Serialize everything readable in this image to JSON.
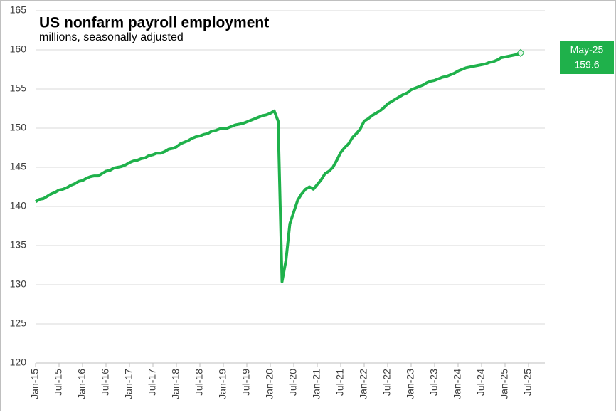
{
  "chart_data": {
    "type": "line",
    "title": "US nonfarm payroll employment",
    "subtitle": "millions, seasonally adjusted",
    "categories": [
      "Jan-15",
      null,
      null,
      null,
      null,
      null,
      "Jul-15",
      null,
      null,
      null,
      null,
      null,
      "Jan-16",
      null,
      null,
      null,
      null,
      null,
      "Jul-16",
      null,
      null,
      null,
      null,
      null,
      "Jan-17",
      null,
      null,
      null,
      null,
      null,
      "Jul-17",
      null,
      null,
      null,
      null,
      null,
      "Jan-18",
      null,
      null,
      null,
      null,
      null,
      "Jul-18",
      null,
      null,
      null,
      null,
      null,
      "Jan-19",
      null,
      null,
      null,
      null,
      null,
      "Jul-19",
      null,
      null,
      null,
      null,
      null,
      "Jan-20",
      null,
      null,
      null,
      null,
      null,
      "Jul-20",
      null,
      null,
      null,
      null,
      null,
      "Jan-21",
      null,
      null,
      null,
      null,
      null,
      "Jul-21",
      null,
      null,
      null,
      null,
      null,
      "Jan-22",
      null,
      null,
      null,
      null,
      null,
      "Jul-22",
      null,
      null,
      null,
      null,
      null,
      "Jan-23",
      null,
      null,
      null,
      null,
      null,
      "Jul-23",
      null,
      null,
      null,
      null,
      null,
      "Jan-24",
      null,
      null,
      null,
      null,
      null,
      "Jul-24",
      null,
      null,
      null,
      null,
      null,
      "Jan-25",
      null,
      null,
      null,
      null,
      null,
      "Jul-25"
    ],
    "series": [
      {
        "name": "US nonfarm payroll employment",
        "color": "#1fb14b",
        "values": [
          140.6,
          140.9,
          141.0,
          141.3,
          141.6,
          141.8,
          142.1,
          142.2,
          142.4,
          142.7,
          142.9,
          143.2,
          143.3,
          143.6,
          143.8,
          143.9,
          143.9,
          144.2,
          144.5,
          144.6,
          144.9,
          145.0,
          145.1,
          145.3,
          145.6,
          145.8,
          145.9,
          146.1,
          146.2,
          146.5,
          146.6,
          146.8,
          146.8,
          147.0,
          147.3,
          147.4,
          147.6,
          148.0,
          148.2,
          148.4,
          148.7,
          148.9,
          149.0,
          149.2,
          149.3,
          149.6,
          149.7,
          149.9,
          150.0,
          150.0,
          150.2,
          150.4,
          150.5,
          150.6,
          150.8,
          151.0,
          151.2,
          151.4,
          151.6,
          151.7,
          151.9,
          152.2,
          150.9,
          130.4,
          133.1,
          137.8,
          139.3,
          140.8,
          141.6,
          142.2,
          142.5,
          142.2,
          142.8,
          143.4,
          144.2,
          144.5,
          145.0,
          145.9,
          146.9,
          147.5,
          148.0,
          148.8,
          149.3,
          149.9,
          150.9,
          151.2,
          151.6,
          151.9,
          152.2,
          152.6,
          153.1,
          153.4,
          153.7,
          154.0,
          154.3,
          154.5,
          154.9,
          155.1,
          155.3,
          155.5,
          155.8,
          156.0,
          156.1,
          156.3,
          156.5,
          156.6,
          156.8,
          157.0,
          157.3,
          157.5,
          157.7,
          157.8,
          157.9,
          158.0,
          158.1,
          158.2,
          158.4,
          158.5,
          158.7,
          159.0,
          159.1,
          159.2,
          159.3,
          159.4,
          159.6,
          null,
          null
        ]
      }
    ],
    "ylim": [
      120,
      165
    ],
    "yticks": [
      120,
      125,
      130,
      135,
      140,
      145,
      150,
      155,
      160,
      165
    ],
    "grid": true,
    "annotation": {
      "label": "May-25",
      "value": 159.6,
      "color": "#1fb14b"
    }
  }
}
